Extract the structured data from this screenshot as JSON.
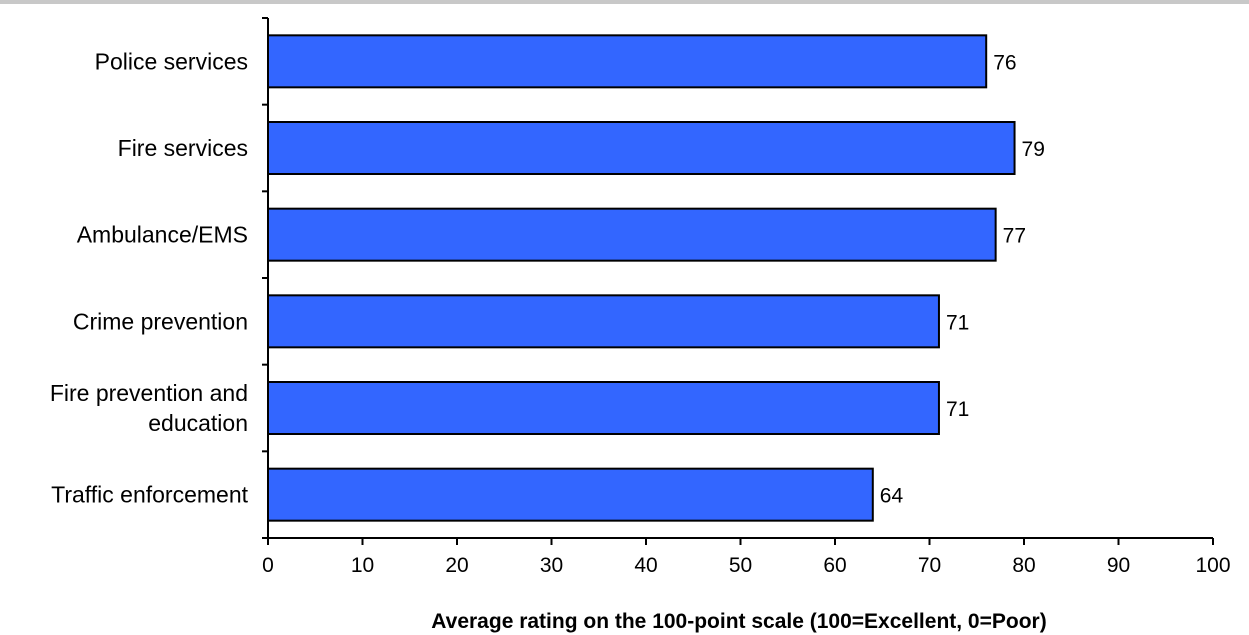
{
  "chart_data": {
    "type": "bar",
    "orientation": "horizontal",
    "categories": [
      [
        "Police services"
      ],
      [
        "Fire services"
      ],
      [
        "Ambulance/EMS"
      ],
      [
        "Crime prevention"
      ],
      [
        "Fire prevention and",
        "education"
      ],
      [
        "Traffic enforcement"
      ]
    ],
    "values": [
      76,
      79,
      77,
      71,
      71,
      64
    ],
    "xlabel": "Average rating on the 100-point scale (100=Excellent, 0=Poor)",
    "xlim": [
      0,
      100
    ],
    "xticks": [
      0,
      10,
      20,
      30,
      40,
      50,
      60,
      70,
      80,
      90,
      100
    ],
    "grid": false,
    "data_labels": true,
    "bar_color": "#3366ff",
    "bar_edge_color": "#000000"
  }
}
